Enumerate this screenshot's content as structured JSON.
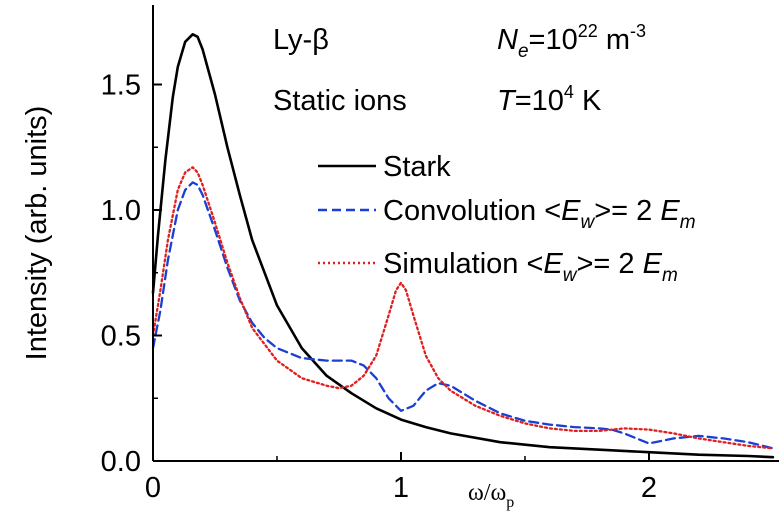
{
  "chart_data": {
    "type": "line",
    "title": "",
    "xlabel": "ω/ω_p",
    "xlabel_main": "ω/ω",
    "xlabel_sub": "p",
    "ylabel": "Intensity (arb. units)",
    "xlim": [
      0,
      2.5
    ],
    "ylim": [
      0,
      1.75
    ],
    "x_ticks": [
      0,
      1,
      2
    ],
    "x_tick_labels": [
      "0",
      "1",
      "2"
    ],
    "y_ticks": [
      0,
      0.5,
      1.0,
      1.5
    ],
    "y_tick_labels": [
      "0.0",
      "0.5",
      "1.0",
      "1.5"
    ],
    "grid": false,
    "legend_position": "right",
    "annotations": {
      "line_label": "Ly-β",
      "ions_label": "Static ions",
      "density": {
        "symbol": "N",
        "subscript": "e",
        "base": "=10",
        "exponent": "22",
        "unit": " m",
        "unit_exponent": "-3"
      },
      "temperature": {
        "symbol": "T",
        "base": "=10",
        "exponent": "4",
        "unit": " K"
      }
    },
    "series": [
      {
        "name": "Stark",
        "color": "#000000",
        "dash": "solid",
        "x": [
          0,
          0.02,
          0.05,
          0.08,
          0.1,
          0.13,
          0.16,
          0.18,
          0.2,
          0.25,
          0.3,
          0.35,
          0.4,
          0.5,
          0.6,
          0.7,
          0.8,
          0.9,
          1.0,
          1.1,
          1.2,
          1.4,
          1.6,
          1.8,
          2.0,
          2.2,
          2.4,
          2.5
        ],
        "y": [
          0.67,
          0.9,
          1.2,
          1.45,
          1.57,
          1.67,
          1.7,
          1.69,
          1.64,
          1.46,
          1.25,
          1.06,
          0.88,
          0.62,
          0.45,
          0.34,
          0.27,
          0.21,
          0.165,
          0.135,
          0.11,
          0.075,
          0.055,
          0.045,
          0.035,
          0.025,
          0.02,
          0.015
        ]
      },
      {
        "name": "Convolution <E_w>= 2 E_m",
        "color": "#1a3fd4",
        "dash": "dashed",
        "x": [
          0,
          0.03,
          0.06,
          0.1,
          0.13,
          0.16,
          0.18,
          0.2,
          0.25,
          0.3,
          0.35,
          0.4,
          0.45,
          0.5,
          0.6,
          0.7,
          0.8,
          0.85,
          0.9,
          0.95,
          1.0,
          1.05,
          1.1,
          1.15,
          1.2,
          1.3,
          1.4,
          1.5,
          1.6,
          1.7,
          1.8,
          1.85,
          1.9,
          2.0,
          2.1,
          2.2,
          2.3,
          2.4,
          2.5
        ],
        "y": [
          0.45,
          0.6,
          0.8,
          1.0,
          1.08,
          1.11,
          1.1,
          1.06,
          0.92,
          0.77,
          0.64,
          0.55,
          0.49,
          0.45,
          0.41,
          0.4,
          0.4,
          0.38,
          0.33,
          0.25,
          0.2,
          0.22,
          0.28,
          0.31,
          0.3,
          0.24,
          0.19,
          0.16,
          0.145,
          0.135,
          0.13,
          0.125,
          0.11,
          0.07,
          0.09,
          0.1,
          0.09,
          0.075,
          0.05
        ]
      },
      {
        "name": "Simulation <E_w>= 2 E_m",
        "color": "#e02020",
        "dash": "dotted",
        "x": [
          0,
          0.03,
          0.06,
          0.1,
          0.13,
          0.16,
          0.18,
          0.2,
          0.25,
          0.3,
          0.35,
          0.4,
          0.5,
          0.6,
          0.7,
          0.75,
          0.8,
          0.85,
          0.9,
          0.95,
          0.98,
          1.0,
          1.02,
          1.05,
          1.1,
          1.15,
          1.2,
          1.3,
          1.4,
          1.5,
          1.6,
          1.7,
          1.8,
          1.9,
          2.0,
          2.1,
          2.2,
          2.3,
          2.4,
          2.5
        ],
        "y": [
          0.5,
          0.68,
          0.88,
          1.08,
          1.15,
          1.17,
          1.15,
          1.1,
          0.95,
          0.79,
          0.65,
          0.53,
          0.4,
          0.33,
          0.3,
          0.29,
          0.3,
          0.34,
          0.42,
          0.58,
          0.68,
          0.71,
          0.68,
          0.58,
          0.42,
          0.33,
          0.28,
          0.22,
          0.18,
          0.15,
          0.13,
          0.12,
          0.12,
          0.13,
          0.125,
          0.11,
          0.09,
          0.075,
          0.06,
          0.05
        ]
      }
    ],
    "legend": [
      {
        "series": 0,
        "text": "Stark"
      },
      {
        "series": 1,
        "prefix": "Convolution <",
        "var": "E",
        "sub": "w",
        "middle": ">= 2 ",
        "var2": "E",
        "sub2": "m"
      },
      {
        "series": 2,
        "prefix": "Simulation <",
        "var": "E",
        "sub": "w",
        "middle": ">= 2 ",
        "var2": "E",
        "sub2": "m"
      }
    ]
  }
}
